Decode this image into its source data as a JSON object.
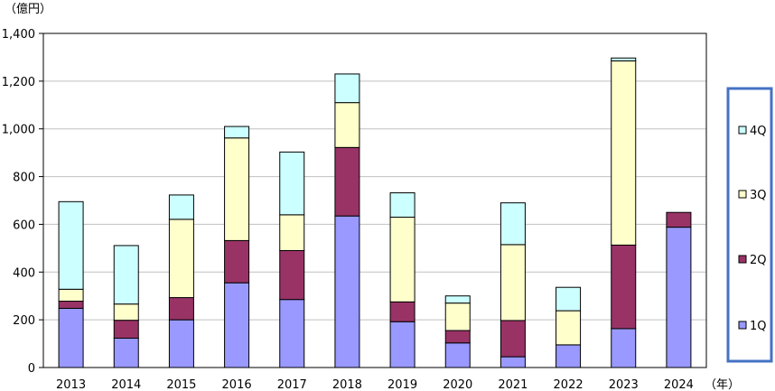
{
  "chart_data": {
    "type": "bar",
    "stacked": true,
    "y_unit_label": "（億円）",
    "x_unit_label": "（年）",
    "categories": [
      "2013",
      "2014",
      "2015",
      "2016",
      "2017",
      "2018",
      "2019",
      "2020",
      "2021",
      "2022",
      "2023",
      "2024"
    ],
    "series": [
      {
        "name": "1Q",
        "color": "#9999ff",
        "values": [
          248,
          123,
          200,
          355,
          285,
          635,
          192,
          103,
          45,
          95,
          163,
          588
        ]
      },
      {
        "name": "2Q",
        "color": "#993366",
        "values": [
          30,
          75,
          93,
          177,
          205,
          287,
          83,
          52,
          152,
          0,
          350,
          62
        ]
      },
      {
        "name": "3Q",
        "color": "#ffffcc",
        "values": [
          50,
          68,
          328,
          430,
          150,
          188,
          355,
          115,
          318,
          143,
          772,
          0
        ]
      },
      {
        "name": "4Q",
        "color": "#ccffff",
        "values": [
          367,
          245,
          102,
          48,
          263,
          120,
          102,
          30,
          175,
          98,
          12,
          0
        ]
      }
    ],
    "ylim": [
      0,
      1400
    ],
    "yticks": [
      "0",
      "200",
      "400",
      "600",
      "800",
      "1,000",
      "1,200",
      "1,400"
    ],
    "grid": true,
    "legend_position": "right",
    "legend_order": [
      "4Q",
      "3Q",
      "2Q",
      "1Q"
    ],
    "legend_border_color": "#4472c4"
  }
}
